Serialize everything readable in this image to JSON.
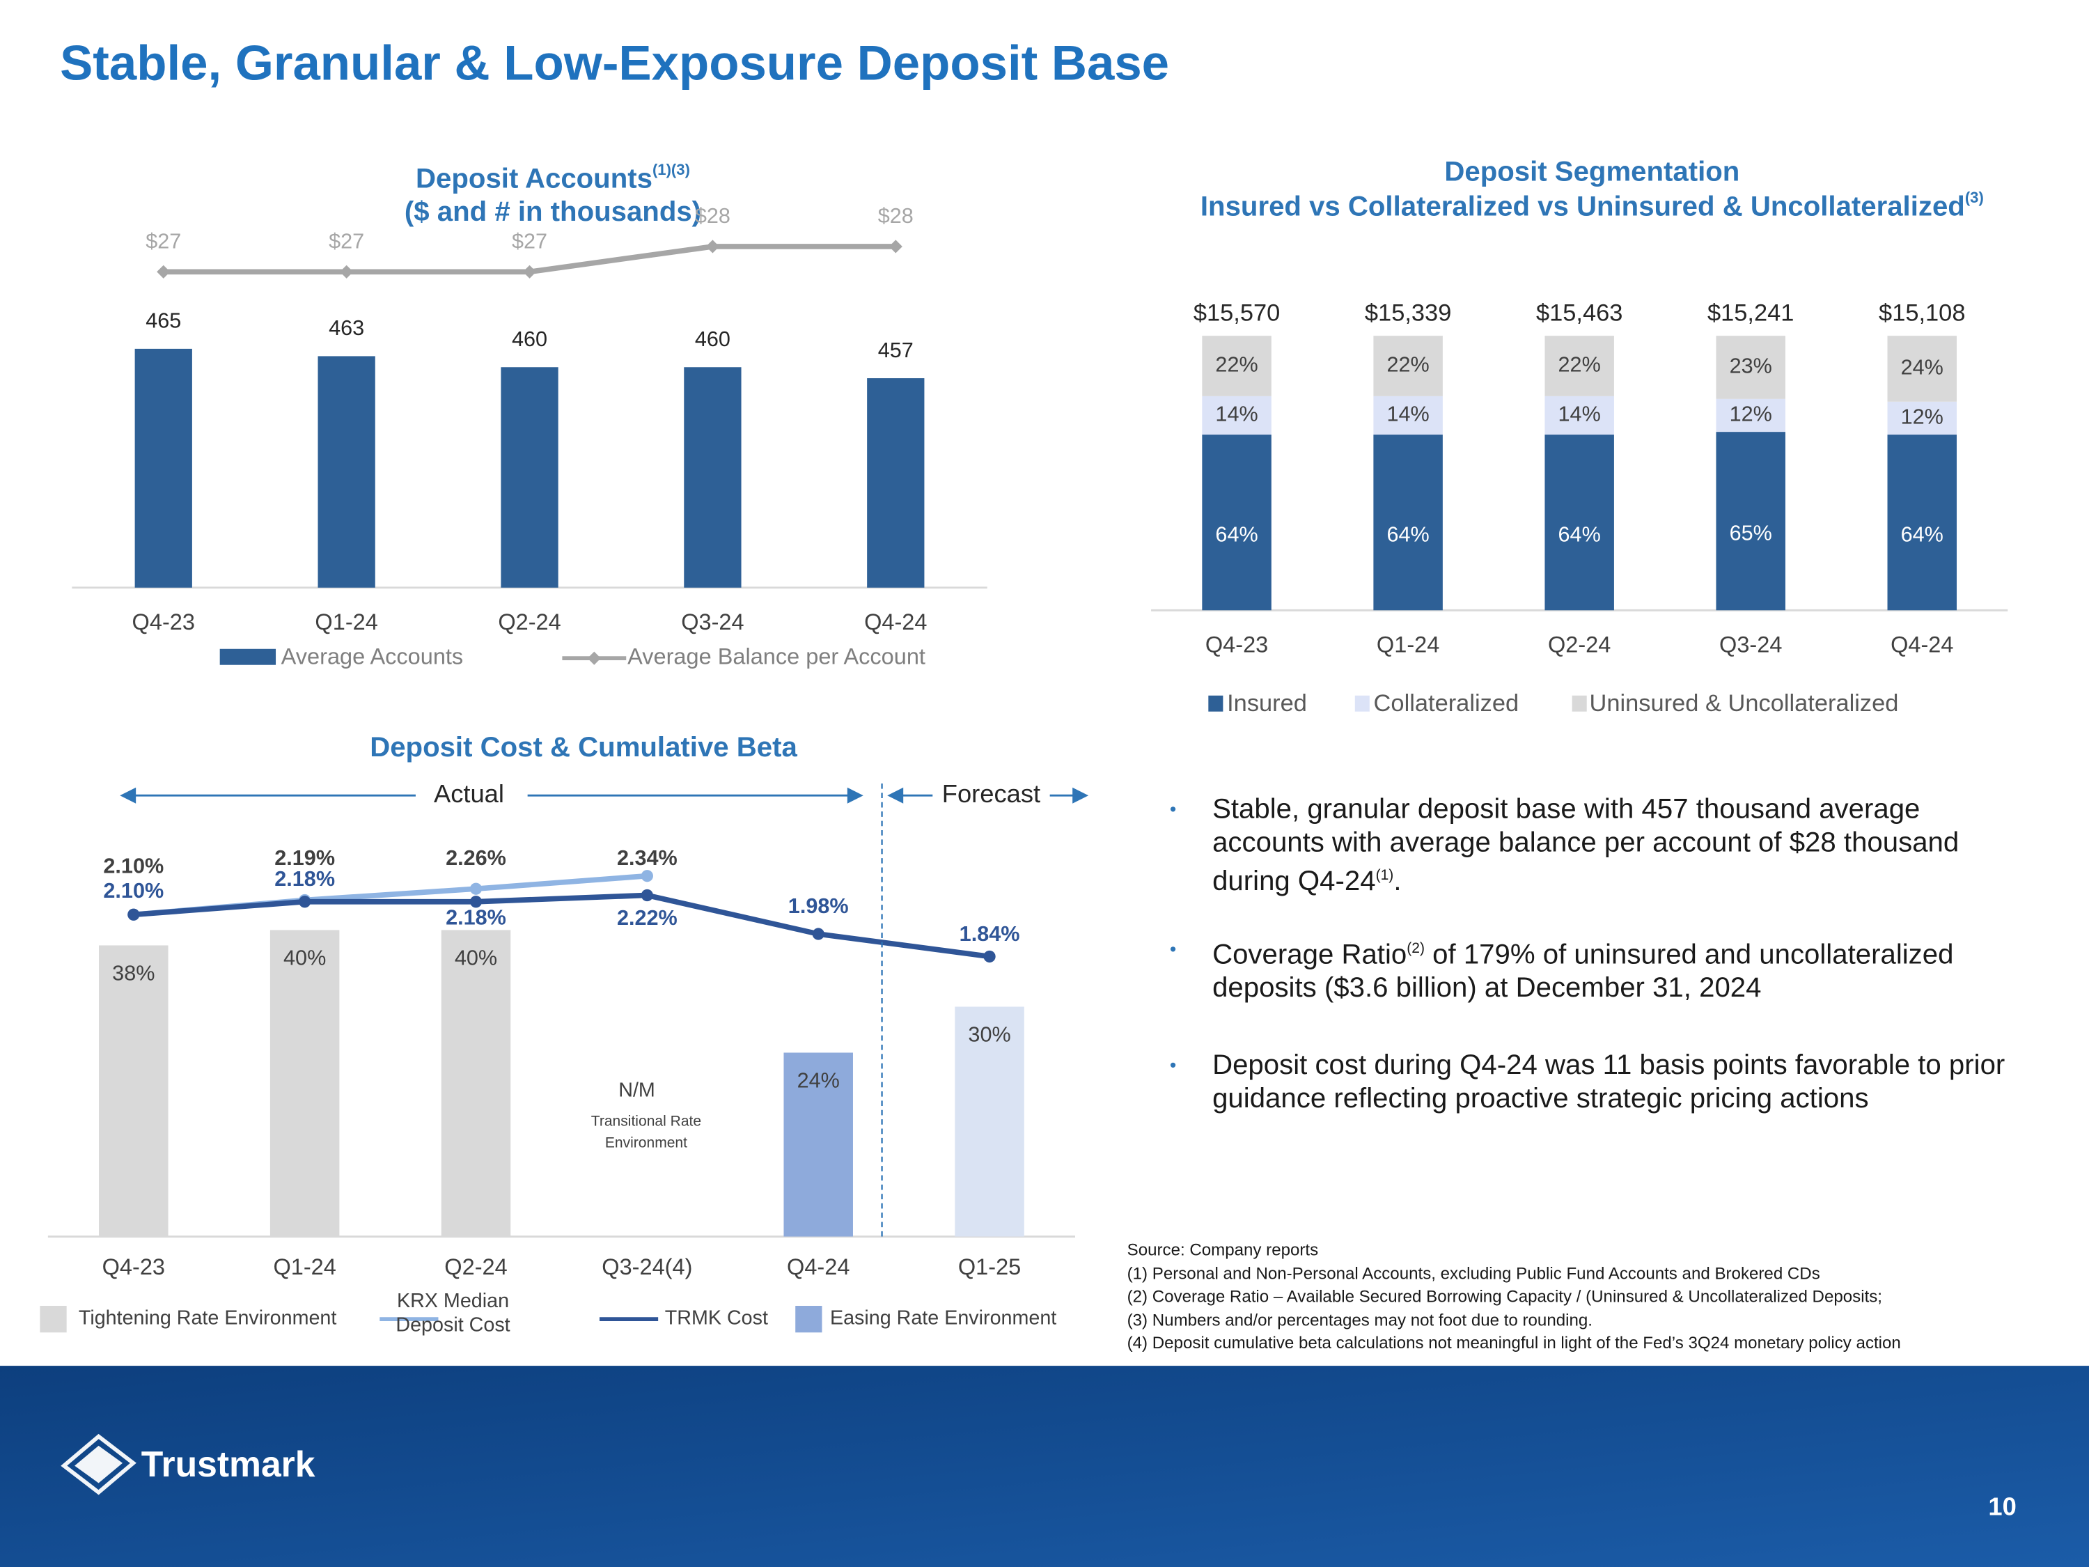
{
  "title": "Stable, Granular & Low-Exposure Deposit Base",
  "chart_data": [
    {
      "type": "combo",
      "title": "Deposit Accounts",
      "title_sup": "(1)(3)",
      "subtitle": "($ and # in thousands)",
      "categories": [
        "Q4-23",
        "Q1-24",
        "Q2-24",
        "Q3-24",
        "Q4-24"
      ],
      "series": [
        {
          "name": "Average Accounts",
          "type": "bar",
          "color": "#2e6096",
          "values": [
            465,
            463,
            460,
            460,
            457
          ]
        },
        {
          "name": "Average Balance per Account",
          "type": "line",
          "axis": "y2",
          "color": "#a6a6a6",
          "values": [
            27,
            27,
            27,
            28,
            28
          ],
          "value_labels": [
            "$27",
            "$27",
            "$27",
            "$28",
            "$28"
          ]
        }
      ],
      "ylim": [
        400,
        470
      ],
      "y2lim": [
        20,
        30
      ]
    },
    {
      "type": "stacked_bar",
      "title": "Deposit Segmentation",
      "subtitle": "Insured vs Collateralized vs Uninsured & Uncollateralized",
      "subtitle_sup": "(3)",
      "categories": [
        "Q4-23",
        "Q1-24",
        "Q2-24",
        "Q3-24",
        "Q4-24"
      ],
      "series": [
        {
          "name": "Insured",
          "color": "#2e6096",
          "values": [
            64,
            64,
            64,
            65,
            64
          ],
          "value_labels": [
            "64%",
            "64%",
            "64%",
            "65%",
            "64%"
          ]
        },
        {
          "name": "Collateralized",
          "color": "#dce3f7",
          "values": [
            14,
            14,
            14,
            12,
            12
          ],
          "value_labels": [
            "14%",
            "14%",
            "14%",
            "12%",
            "12%"
          ]
        },
        {
          "name": "Uninsured & Uncollateralized",
          "color": "#d9d9d9",
          "values": [
            22,
            22,
            22,
            23,
            24
          ],
          "value_labels": [
            "22%",
            "22%",
            "22%",
            "23%",
            "24%"
          ]
        }
      ],
      "totals": {
        "values": [
          15570,
          15339,
          15463,
          15241,
          15108
        ],
        "value_labels": [
          "$15,570",
          "$15,339",
          "$15,463",
          "$15,241",
          "$15,108"
        ]
      },
      "ylim": [
        0,
        100
      ]
    },
    {
      "type": "combo",
      "title": "Deposit Cost & Cumulative Beta",
      "categories": [
        "Q4-23",
        "Q1-24",
        "Q2-24",
        "Q3-24(4)",
        "Q4-24",
        "Q1-25"
      ],
      "series": [
        {
          "name": "Tightening Rate Environment",
          "type": "bar",
          "color": "#d9d9d9",
          "values": [
            38,
            40,
            40,
            null,
            null,
            null
          ],
          "value_labels": [
            "38%",
            "40%",
            "40%",
            null,
            null,
            null
          ]
        },
        {
          "name": "KRX Median Deposit Cost",
          "type": "line",
          "axis": "y2",
          "color": "#8fb4e3",
          "values": [
            2.1,
            2.19,
            2.26,
            2.34,
            null,
            null
          ],
          "value_labels": [
            "2.10%",
            "2.19%",
            "2.26%",
            "2.34%",
            null,
            null
          ]
        },
        {
          "name": "TRMK Cost",
          "type": "line",
          "axis": "y2",
          "color": "#2f5597",
          "values": [
            2.1,
            2.18,
            2.18,
            2.22,
            1.98,
            1.84
          ],
          "value_labels": [
            "2.10%",
            "2.18%",
            "2.18%",
            "2.22%",
            "1.98%",
            "1.84%"
          ]
        },
        {
          "name": "Easing Rate Environment",
          "type": "bar",
          "color": "#8eaadb",
          "values": [
            null,
            null,
            null,
            null,
            24,
            null
          ],
          "value_labels": [
            null,
            null,
            null,
            null,
            "24%",
            null
          ]
        },
        {
          "type": "bar",
          "color": "#dae3f3",
          "values": [
            null,
            null,
            null,
            null,
            null,
            30
          ],
          "value_labels": [
            null,
            null,
            null,
            null,
            null,
            "30%"
          ]
        }
      ],
      "annotations": {
        "actual": "Actual",
        "forecast": "Forecast",
        "nm": "N/M",
        "nm_note": "Transitional Rate Environment"
      },
      "ylim": [
        0,
        100
      ],
      "y2lim": [
        1.5,
        2.5
      ]
    }
  ],
  "bullets": [
    [
      {
        "text": "Stable, granular deposit base with 457 thousand average accounts with average balance per account of $28 thousand during Q4-24"
      },
      {
        "sup": "(1)"
      },
      {
        "text": "."
      }
    ],
    [
      {
        "text": "Coverage Ratio"
      },
      {
        "sup": "(2)"
      },
      {
        "text": " of 179% of uninsured and uncollateralized deposits ($3.6 billion) at December 31, 2024"
      }
    ],
    [
      {
        "text": "Deposit cost during Q4-24 was 11 basis points favorable to prior guidance reflecting proactive strategic pricing actions"
      }
    ]
  ],
  "footnotes": [
    "Source: Company reports",
    "(1) Personal and Non-Personal Accounts, excluding Public Fund Accounts and Brokered CDs",
    "(2) Coverage Ratio – Available Secured Borrowing Capacity / (Uninsured & Uncollateralized Deposits;",
    "(3) Numbers and/or percentages may not foot due to rounding.",
    "(4) Deposit cumulative beta calculations not meaningful in light of the Fed’s 3Q24 monetary policy action"
  ],
  "logo": "Trustmark",
  "page_number": "10"
}
